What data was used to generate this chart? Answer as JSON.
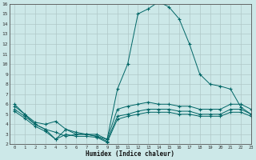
{
  "xlabel": "Humidex (Indice chaleur)",
  "background_color": "#cce8e8",
  "grid_color": "#b0c8c8",
  "line_color": "#006666",
  "xlim": [
    -0.5,
    23
  ],
  "ylim": [
    2,
    16
  ],
  "xticks": [
    0,
    1,
    2,
    3,
    4,
    5,
    6,
    7,
    8,
    9,
    10,
    11,
    12,
    13,
    14,
    15,
    16,
    17,
    18,
    19,
    20,
    21,
    22,
    23
  ],
  "yticks": [
    2,
    3,
    4,
    5,
    6,
    7,
    8,
    9,
    10,
    11,
    12,
    13,
    14,
    15,
    16
  ],
  "line1_x": [
    0,
    1,
    2,
    3,
    4,
    5,
    6,
    7,
    8,
    9,
    10,
    11,
    12,
    13,
    14,
    15,
    16,
    17,
    18,
    19,
    20,
    21,
    22,
    23
  ],
  "line1_y": [
    6.0,
    5.0,
    4.2,
    4.0,
    4.3,
    3.5,
    3.2,
    3.0,
    3.0,
    2.5,
    7.5,
    10.0,
    15.0,
    15.5,
    16.2,
    15.7,
    14.5,
    12.0,
    9.0,
    8.0,
    7.8,
    7.5,
    5.7,
    5.0
  ],
  "line2_x": [
    0,
    1,
    2,
    3,
    4,
    5,
    6,
    7,
    8,
    9,
    10,
    11,
    12,
    13,
    14,
    15,
    16,
    17,
    18,
    19,
    20,
    21,
    22,
    23
  ],
  "line2_y": [
    5.8,
    5.0,
    4.0,
    3.5,
    3.2,
    2.8,
    3.0,
    3.0,
    2.8,
    2.5,
    5.5,
    5.8,
    6.0,
    6.2,
    6.0,
    6.0,
    5.8,
    5.8,
    5.5,
    5.5,
    5.5,
    6.0,
    6.0,
    5.5
  ],
  "line3_x": [
    0,
    1,
    2,
    3,
    4,
    5,
    6,
    7,
    8,
    9,
    10,
    11,
    12,
    13,
    14,
    15,
    16,
    17,
    18,
    19,
    20,
    21,
    22,
    23
  ],
  "line3_y": [
    5.5,
    4.8,
    4.0,
    3.5,
    2.5,
    3.5,
    3.0,
    3.0,
    2.8,
    2.3,
    4.8,
    5.0,
    5.3,
    5.5,
    5.5,
    5.5,
    5.3,
    5.3,
    5.0,
    5.0,
    5.0,
    5.5,
    5.5,
    5.0
  ],
  "line4_x": [
    0,
    1,
    2,
    3,
    4,
    5,
    6,
    7,
    8,
    9,
    10,
    11,
    12,
    13,
    14,
    15,
    16,
    17,
    18,
    19,
    20,
    21,
    22,
    23
  ],
  "line4_y": [
    5.3,
    4.6,
    3.8,
    3.3,
    2.5,
    3.0,
    2.8,
    2.8,
    2.7,
    2.2,
    4.5,
    4.8,
    5.0,
    5.2,
    5.2,
    5.2,
    5.0,
    5.0,
    4.8,
    4.8,
    4.8,
    5.2,
    5.2,
    4.8
  ]
}
